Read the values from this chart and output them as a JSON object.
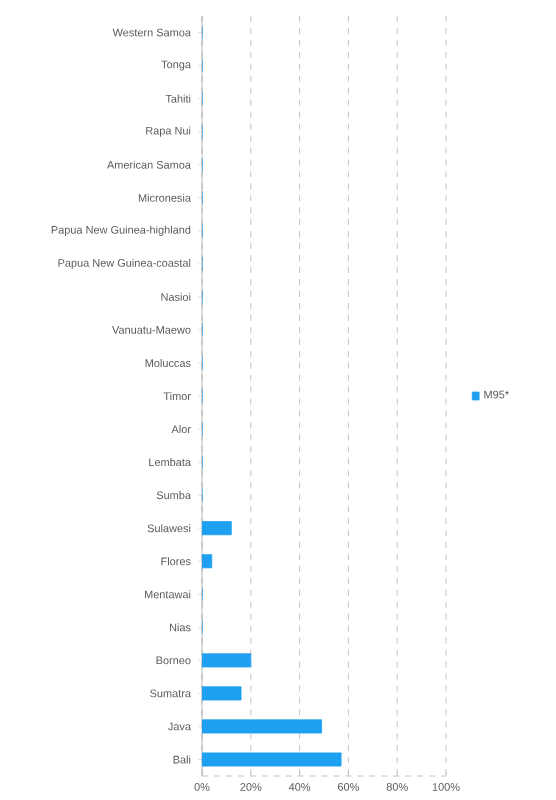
{
  "chart_data": {
    "type": "bar",
    "orientation": "horizontal",
    "categories": [
      "Western Samoa",
      "Tonga",
      "Tahiti",
      "Rapa Nui",
      "American Samoa",
      "Micronesia",
      "Papua New Guinea-highland",
      "Papua New Guinea-coastal",
      "Nasioi",
      "Vanuatu-Maewo",
      "Moluccas",
      "Timor",
      "Alor",
      "Lembata",
      "Sumba",
      "Sulawesi",
      "Flores",
      "Mentawai",
      "Nias",
      "Borneo",
      "Sumatra",
      "Java",
      "Bali"
    ],
    "series": [
      {
        "name": "M95*",
        "color": "#1ea0f0",
        "values": [
          0,
          0,
          0,
          0,
          0,
          0,
          0,
          0,
          0,
          0,
          0,
          0,
          0,
          0,
          0,
          12,
          4,
          0,
          0,
          20,
          16,
          49,
          57
        ]
      }
    ],
    "xlim": [
      0,
      100
    ],
    "xticks": [
      {
        "value": 0,
        "label": "0%"
      },
      {
        "value": 20,
        "label": "20%"
      },
      {
        "value": 40,
        "label": "40%"
      },
      {
        "value": 60,
        "label": "60%"
      },
      {
        "value": 80,
        "label": "80%"
      },
      {
        "value": 100,
        "label": "100%"
      }
    ],
    "grid": "x",
    "legend": "right"
  }
}
